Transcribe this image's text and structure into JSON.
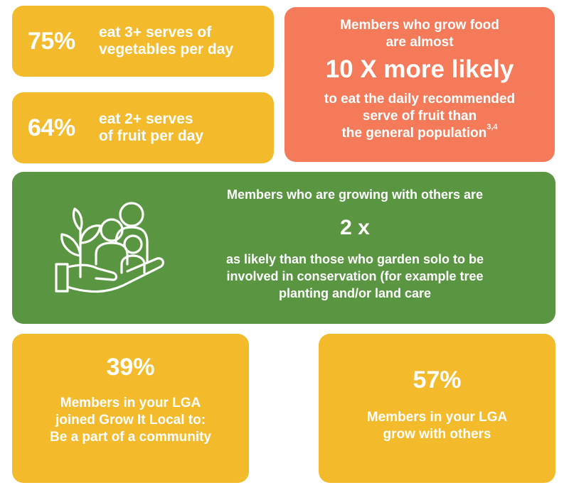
{
  "vegetables": {
    "percent": "75%",
    "line1": "eat 3+ serves of",
    "line2": "vegetables per day"
  },
  "fruit": {
    "percent": "64%",
    "line1": "eat 2+ serves",
    "line2": "of fruit per day"
  },
  "grow_food": {
    "line1": "Members who grow food",
    "line2": "are almost",
    "headline": "10 X more likely",
    "line3": "to eat the daily recommended",
    "line4": "serve of fruit than",
    "line5": "the general population",
    "footnote": "3,4"
  },
  "growing_with_others": {
    "line1": "Members who are growing with others are",
    "headline": "2 x",
    "line2": "as likely than those who garden solo to be",
    "line3": "involved in conservation (for example tree",
    "line4": "planting and/or land care"
  },
  "joined": {
    "percent": "39%",
    "line1": "Members in your LGA",
    "line2": "joined Grow It Local to:",
    "line3": "Be a part of a community"
  },
  "grow_with_others": {
    "percent": "57%",
    "line1": "Members in your LGA",
    "line2": "grow with others"
  },
  "colors": {
    "yellow": "#f3bb2c",
    "coral": "#f47a5a",
    "green": "#5a9542",
    "text": "#ffffff"
  },
  "icons": {
    "community": "community-gardening-hand-icon"
  }
}
